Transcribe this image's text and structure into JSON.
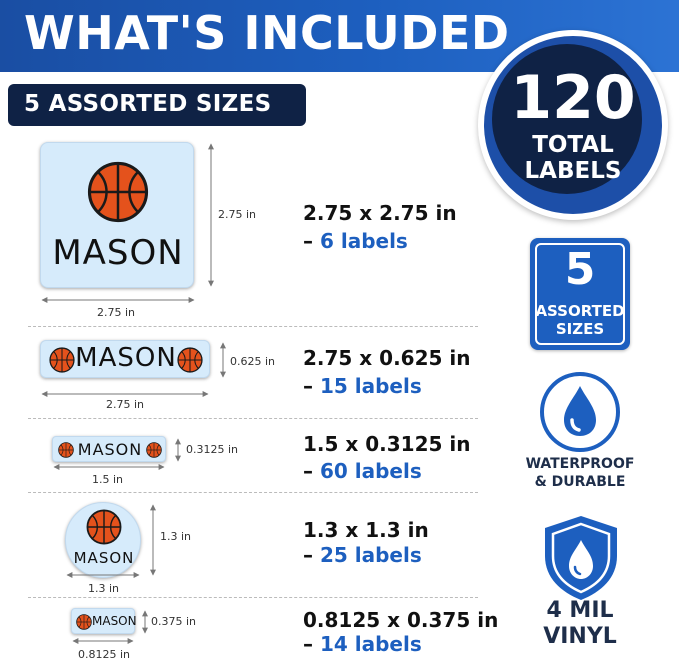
{
  "header": {
    "title": "WHAT'S INCLUDED",
    "subtitle": "5 ASSORTED SIZES"
  },
  "badge": {
    "number": "120",
    "line1": "TOTAL",
    "line2": "LABELS"
  },
  "features": {
    "sizes": {
      "number": "5",
      "line1": "ASSORTED",
      "line2": "SIZES"
    },
    "waterproof": {
      "line1": "WATERPROOF",
      "line2": "& DURABLE",
      "icon": "water-drop-icon"
    },
    "vinyl": {
      "line1": "4 MIL",
      "line2": "VINYL",
      "icon": "shield-drop-icon"
    }
  },
  "label_name": "MASON",
  "colors": {
    "brand_blue": "#1d5fbf",
    "navy": "#0f2245",
    "sticker_bg": "#d6ebfb",
    "ball": "#e4521c"
  },
  "labels": [
    {
      "size": "2.75 x 2.75 in",
      "dash": "– ",
      "count": "6 labels",
      "width_label": "2.75 in",
      "height_label": "2.75 in"
    },
    {
      "size": "2.75 x 0.625 in",
      "dash": "– ",
      "count": "15 labels",
      "width_label": "2.75 in",
      "height_label": "0.625 in"
    },
    {
      "size": "1.5 x 0.3125 in",
      "dash": "– ",
      "count": "60 labels",
      "width_label": "1.5 in",
      "height_label": "0.3125 in"
    },
    {
      "size": "1.3 x 1.3 in",
      "dash": "– ",
      "count": "25 labels",
      "width_label": "1.3 in",
      "height_label": "1.3 in"
    },
    {
      "size": "0.8125 x 0.375 in",
      "dash": "– ",
      "count": "14 labels",
      "width_label": "0.8125 in",
      "height_label": "0.375 in"
    }
  ]
}
